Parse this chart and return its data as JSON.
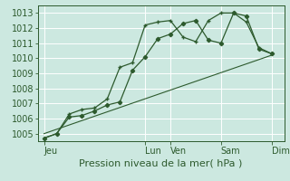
{
  "background_color": "#cce8e0",
  "grid_color": "#ffffff",
  "line_color": "#2d5a2d",
  "ylim": [
    1004.5,
    1013.5
  ],
  "yticks": [
    1005,
    1006,
    1007,
    1008,
    1009,
    1010,
    1011,
    1012,
    1013
  ],
  "xlabel": "Pression niveau de la mer( hPa )",
  "xlabel_fontsize": 8,
  "tick_fontsize": 7,
  "day_labels": [
    "Jeu",
    "Lun",
    "Ven",
    "Sam",
    "Dim"
  ],
  "day_positions": [
    0,
    16,
    20,
    28,
    36
  ],
  "xlim": [
    -1,
    38
  ],
  "line1_x": [
    0,
    2,
    4,
    6,
    8,
    10,
    12,
    14,
    16,
    18,
    20,
    22,
    24,
    26,
    28,
    30,
    32,
    34,
    36
  ],
  "line1_y": [
    1004.7,
    1005.0,
    1006.1,
    1006.2,
    1006.5,
    1006.9,
    1007.1,
    1009.2,
    1010.1,
    1011.3,
    1011.6,
    1012.3,
    1012.5,
    1011.2,
    1011.0,
    1013.0,
    1012.8,
    1010.6,
    1010.3
  ],
  "line2_x": [
    0,
    2,
    4,
    6,
    8,
    10,
    12,
    14,
    16,
    18,
    20,
    22,
    24,
    26,
    28,
    30,
    32,
    34,
    36
  ],
  "line2_y": [
    1004.7,
    1005.0,
    1006.3,
    1006.6,
    1006.7,
    1007.3,
    1009.4,
    1009.7,
    1012.2,
    1012.4,
    1012.5,
    1011.4,
    1011.1,
    1012.5,
    1013.0,
    1013.0,
    1012.4,
    1010.7,
    1010.3
  ],
  "line3_x": [
    0,
    36
  ],
  "line3_y": [
    1005.0,
    1010.2
  ]
}
